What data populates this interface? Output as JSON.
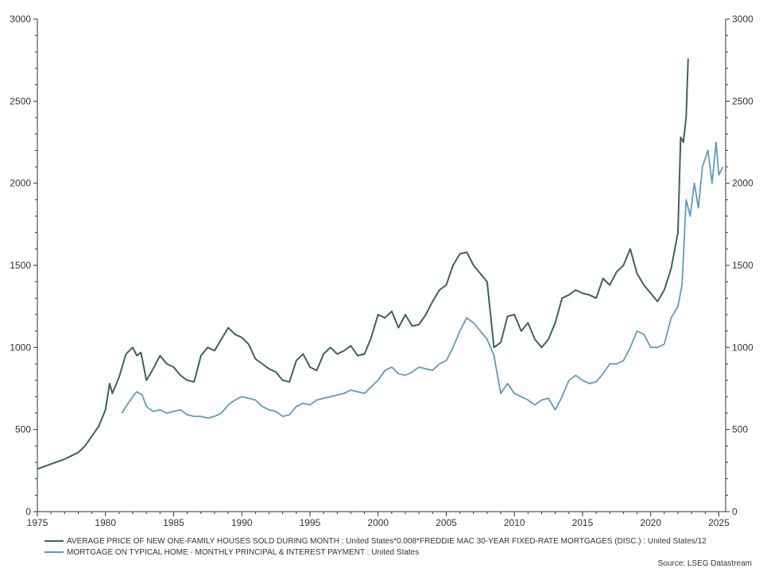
{
  "chart_data": {
    "type": "line",
    "xlim": [
      1975,
      2025.5
    ],
    "ylim_left": [
      0,
      3000
    ],
    "ylim_right": [
      0,
      3000
    ],
    "x_ticks": [
      1975,
      1980,
      1985,
      1990,
      1995,
      2000,
      2005,
      2010,
      2015,
      2020,
      2025
    ],
    "y_ticks": [
      0,
      500,
      1000,
      1500,
      2000,
      2500,
      3000
    ],
    "grid": false,
    "legend_position": "bottom",
    "source": "Source: LSEG Datastream",
    "series": [
      {
        "name": "AVERAGE PRICE OF NEW ONE-FAMILY HOUSES SOLD DURING MONTH : United States*0.008*FREDDIE MAC 30-YEAR FIXED-RATE MORTGAGES (DISC.) : United States/12",
        "color": "#3a6652",
        "x": [
          1975.0,
          1975.5,
          1976.0,
          1976.5,
          1977.0,
          1977.5,
          1978.0,
          1978.5,
          1979.0,
          1979.5,
          1980.0,
          1980.3,
          1980.5,
          1981.0,
          1981.5,
          1982.0,
          1982.3,
          1982.6,
          1983.0,
          1983.5,
          1984.0,
          1984.5,
          1985.0,
          1985.5,
          1986.0,
          1986.5,
          1987.0,
          1987.5,
          1988.0,
          1988.5,
          1989.0,
          1989.5,
          1990.0,
          1990.5,
          1991.0,
          1991.5,
          1992.0,
          1992.5,
          1993.0,
          1993.5,
          1994.0,
          1994.5,
          1995.0,
          1995.5,
          1996.0,
          1996.5,
          1997.0,
          1997.5,
          1998.0,
          1998.5,
          1999.0,
          1999.5,
          2000.0,
          2000.5,
          2001.0,
          2001.5,
          2002.0,
          2002.5,
          2003.0,
          2003.5,
          2004.0,
          2004.5,
          2005.0,
          2005.5,
          2006.0,
          2006.5,
          2007.0,
          2007.5,
          2008.0,
          2008.5,
          2009.0,
          2009.5,
          2010.0,
          2010.5,
          2011.0,
          2011.5,
          2012.0,
          2012.5,
          2013.0,
          2013.5,
          2014.0,
          2014.5,
          2015.0,
          2015.5,
          2016.0,
          2016.5,
          2017.0,
          2017.5,
          2018.0,
          2018.5,
          2019.0,
          2019.5,
          2020.0,
          2020.5,
          2021.0,
          2021.5,
          2022.0,
          2022.2,
          2022.4,
          2022.6,
          2022.75
        ],
        "values": [
          260,
          275,
          290,
          305,
          320,
          340,
          360,
          400,
          460,
          520,
          620,
          780,
          720,
          820,
          960,
          1000,
          950,
          970,
          800,
          870,
          950,
          900,
          880,
          830,
          800,
          790,
          950,
          1000,
          980,
          1050,
          1120,
          1080,
          1060,
          1020,
          930,
          900,
          870,
          850,
          800,
          790,
          920,
          960,
          880,
          860,
          960,
          1000,
          960,
          980,
          1010,
          950,
          960,
          1060,
          1200,
          1180,
          1220,
          1120,
          1200,
          1130,
          1140,
          1200,
          1280,
          1350,
          1380,
          1500,
          1570,
          1580,
          1500,
          1450,
          1400,
          1000,
          1030,
          1190,
          1200,
          1100,
          1150,
          1050,
          1000,
          1050,
          1150,
          1300,
          1320,
          1350,
          1330,
          1320,
          1300,
          1420,
          1380,
          1460,
          1500,
          1600,
          1450,
          1380,
          1330,
          1280,
          1350,
          1480,
          1700,
          2280,
          2250,
          2400,
          2760
        ]
      },
      {
        "name": "MORTGAGE ON TYPICAL HOME - MONTHLY PRINCIPAL & INTEREST PAYMENT : United States",
        "color": "#5e9bbf",
        "x": [
          1981.2,
          1981.5,
          1982.0,
          1982.3,
          1982.7,
          1983.0,
          1983.5,
          1984.0,
          1984.5,
          1985.0,
          1985.5,
          1986.0,
          1986.5,
          1987.0,
          1987.5,
          1988.0,
          1988.5,
          1989.0,
          1989.5,
          1990.0,
          1990.5,
          1991.0,
          1991.5,
          1992.0,
          1992.5,
          1993.0,
          1993.5,
          1994.0,
          1994.5,
          1995.0,
          1995.5,
          1996.0,
          1996.5,
          1997.0,
          1997.5,
          1998.0,
          1998.5,
          1999.0,
          1999.5,
          2000.0,
          2000.5,
          2001.0,
          2001.5,
          2002.0,
          2002.5,
          2003.0,
          2003.5,
          2004.0,
          2004.5,
          2005.0,
          2005.5,
          2006.0,
          2006.5,
          2007.0,
          2007.5,
          2008.0,
          2008.5,
          2009.0,
          2009.5,
          2010.0,
          2010.5,
          2011.0,
          2011.5,
          2012.0,
          2012.5,
          2013.0,
          2013.5,
          2014.0,
          2014.5,
          2015.0,
          2015.5,
          2016.0,
          2016.5,
          2017.0,
          2017.5,
          2018.0,
          2018.5,
          2019.0,
          2019.5,
          2020.0,
          2020.5,
          2021.0,
          2021.5,
          2022.0,
          2022.3,
          2022.6,
          2022.9,
          2023.2,
          2023.5,
          2023.8,
          2024.2,
          2024.5,
          2024.8,
          2025.0,
          2025.3
        ],
        "values": [
          600,
          640,
          700,
          730,
          710,
          640,
          610,
          620,
          600,
          610,
          620,
          590,
          580,
          580,
          570,
          580,
          600,
          650,
          680,
          700,
          690,
          680,
          640,
          620,
          610,
          580,
          590,
          640,
          660,
          650,
          680,
          690,
          700,
          710,
          720,
          740,
          730,
          720,
          760,
          800,
          860,
          880,
          840,
          830,
          850,
          880,
          870,
          860,
          900,
          920,
          1000,
          1100,
          1180,
          1150,
          1100,
          1050,
          950,
          720,
          780,
          720,
          700,
          680,
          650,
          680,
          690,
          620,
          700,
          800,
          830,
          800,
          780,
          790,
          840,
          900,
          900,
          920,
          1000,
          1100,
          1080,
          1000,
          1000,
          1020,
          1180,
          1250,
          1380,
          1900,
          1800,
          2000,
          1850,
          2100,
          2200,
          2000,
          2250,
          2050,
          2100
        ]
      }
    ]
  }
}
